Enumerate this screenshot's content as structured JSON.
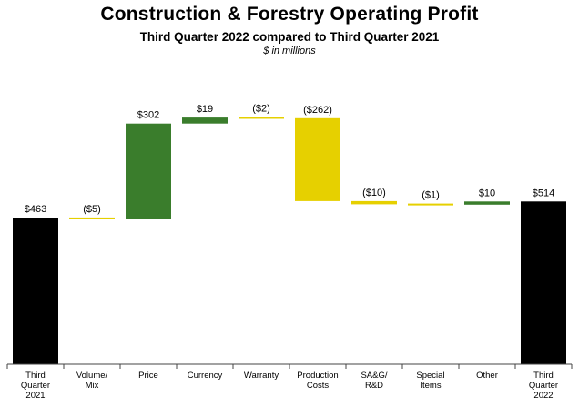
{
  "header": {
    "title": "Construction & Forestry Operating Profit",
    "subtitle": "Third Quarter 2022 compared to Third Quarter 2021",
    "units": "$ in millions"
  },
  "colors": {
    "total": "#000000",
    "increase": "#3a7d2c",
    "decrease": "#e6d000",
    "axis": "#444444"
  },
  "chart_data": {
    "type": "bar",
    "subtype": "waterfall",
    "title": "Construction & Forestry Operating Profit",
    "subtitle": "Third Quarter 2022 compared to Third Quarter 2021",
    "units": "$ in millions",
    "categories": [
      [
        "Third",
        "Quarter",
        "2021"
      ],
      [
        "Volume/",
        "Mix"
      ],
      [
        "Price"
      ],
      [
        "Currency"
      ],
      [
        "Warranty"
      ],
      [
        "Production",
        "Costs"
      ],
      [
        "SA&G/",
        "R&D"
      ],
      [
        "Special",
        "Items"
      ],
      [
        "Other"
      ],
      [
        "Third",
        "Quarter",
        "2022"
      ]
    ],
    "values": [
      463,
      -5,
      302,
      19,
      -2,
      -262,
      -10,
      -1,
      10,
      514
    ],
    "kinds": [
      "total",
      "change",
      "change",
      "change",
      "change",
      "change",
      "change",
      "change",
      "change",
      "total"
    ],
    "labels": [
      "$463",
      "($5)",
      "$302",
      "$19",
      "($2)",
      "($262)",
      "($10)",
      "($1)",
      "$10",
      "$514"
    ],
    "legend": "none",
    "grid": false
  }
}
